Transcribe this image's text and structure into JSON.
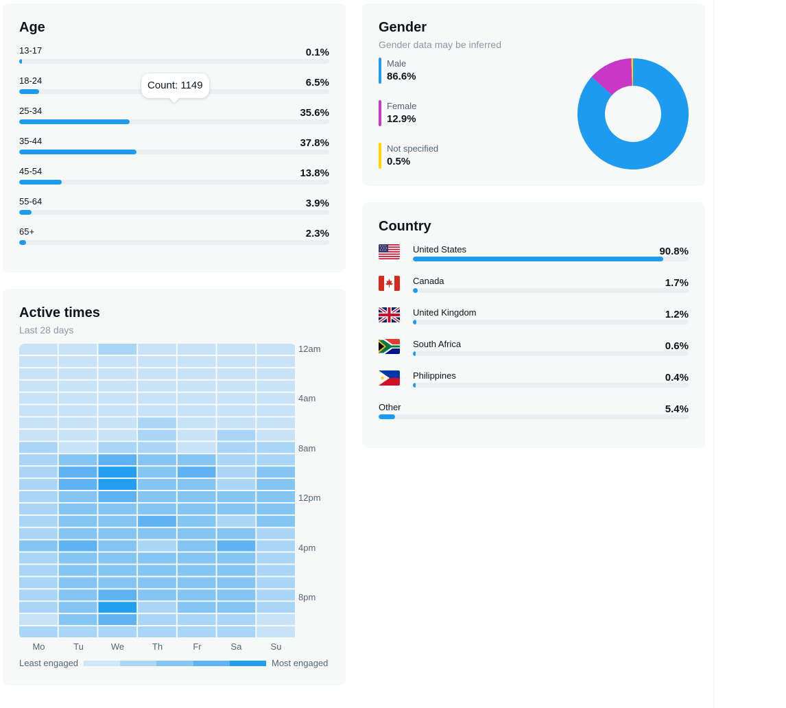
{
  "colors": {
    "accent": "#1d9bf0",
    "card_bg": "#f7f9f9",
    "track": "#eceff1",
    "male": "#1d9bf0",
    "female": "#c837c5",
    "not_specified": "#ffd400"
  },
  "age": {
    "title": "Age",
    "tooltip": "Count: 1149",
    "rows": [
      {
        "label": "13-17",
        "pct_text": "0.1%",
        "value": 0.1
      },
      {
        "label": "18-24",
        "pct_text": "6.5%",
        "value": 6.5
      },
      {
        "label": "25-34",
        "pct_text": "35.6%",
        "value": 35.6
      },
      {
        "label": "35-44",
        "pct_text": "37.8%",
        "value": 37.8
      },
      {
        "label": "45-54",
        "pct_text": "13.8%",
        "value": 13.8
      },
      {
        "label": "55-64",
        "pct_text": "3.9%",
        "value": 3.9
      },
      {
        "label": "65+",
        "pct_text": "2.3%",
        "value": 2.3
      }
    ]
  },
  "active_times": {
    "title": "Active times",
    "subtitle": "Last 28 days",
    "time_labels": [
      "12am",
      "4am",
      "8am",
      "12pm",
      "4pm",
      "8pm"
    ],
    "days": [
      "Mo",
      "Tu",
      "We",
      "Th",
      "Fr",
      "Sa",
      "Su"
    ],
    "legend_low": "Least engaged",
    "legend_high": "Most engaged",
    "levels": [
      [
        1,
        1,
        2,
        1,
        1,
        1,
        1
      ],
      [
        1,
        1,
        1,
        1,
        1,
        1,
        1
      ],
      [
        1,
        1,
        1,
        1,
        1,
        1,
        1
      ],
      [
        1,
        1,
        1,
        1,
        1,
        1,
        1
      ],
      [
        1,
        1,
        1,
        1,
        1,
        1,
        1
      ],
      [
        1,
        1,
        1,
        1,
        1,
        1,
        1
      ],
      [
        1,
        1,
        1,
        2,
        1,
        1,
        1
      ],
      [
        1,
        1,
        1,
        2,
        1,
        2,
        1
      ],
      [
        2,
        1,
        2,
        2,
        1,
        2,
        2
      ],
      [
        2,
        3,
        4,
        3,
        3,
        2,
        2
      ],
      [
        2,
        4,
        5,
        3,
        4,
        2,
        3
      ],
      [
        2,
        4,
        5,
        3,
        3,
        2,
        3
      ],
      [
        2,
        3,
        4,
        3,
        3,
        3,
        3
      ],
      [
        2,
        3,
        3,
        3,
        3,
        3,
        3
      ],
      [
        2,
        3,
        3,
        4,
        3,
        2,
        3
      ],
      [
        2,
        3,
        3,
        3,
        3,
        3,
        2
      ],
      [
        3,
        4,
        3,
        2,
        3,
        4,
        2
      ],
      [
        2,
        3,
        3,
        3,
        3,
        3,
        2
      ],
      [
        2,
        3,
        3,
        3,
        3,
        3,
        2
      ],
      [
        2,
        3,
        3,
        3,
        3,
        3,
        2
      ],
      [
        2,
        3,
        4,
        3,
        3,
        3,
        2
      ],
      [
        2,
        3,
        5,
        2,
        3,
        3,
        2
      ],
      [
        1,
        3,
        4,
        2,
        2,
        2,
        1
      ],
      [
        2,
        2,
        2,
        2,
        2,
        2,
        1
      ]
    ]
  },
  "gender": {
    "title": "Gender",
    "subtitle": "Gender data may be inferred",
    "items": [
      {
        "label": "Male",
        "pct_text": "86.6%",
        "value": 86.6
      },
      {
        "label": "Female",
        "pct_text": "12.9%",
        "value": 12.9
      },
      {
        "label": "Not specified",
        "pct_text": "0.5%",
        "value": 0.5
      }
    ]
  },
  "country": {
    "title": "Country",
    "rows": [
      {
        "name": "United States",
        "flag": "us-flag-icon",
        "pct_text": "90.8%",
        "value": 90.8
      },
      {
        "name": "Canada",
        "flag": "ca-flag-icon",
        "pct_text": "1.7%",
        "value": 1.7
      },
      {
        "name": "United Kingdom",
        "flag": "gb-flag-icon",
        "pct_text": "1.2%",
        "value": 1.2
      },
      {
        "name": "South Africa",
        "flag": "za-flag-icon",
        "pct_text": "0.6%",
        "value": 0.6
      },
      {
        "name": "Philippines",
        "flag": "ph-flag-icon",
        "pct_text": "0.4%",
        "value": 0.4
      },
      {
        "name": "Other",
        "flag": "",
        "pct_text": "5.4%",
        "value": 5.4
      }
    ]
  }
}
